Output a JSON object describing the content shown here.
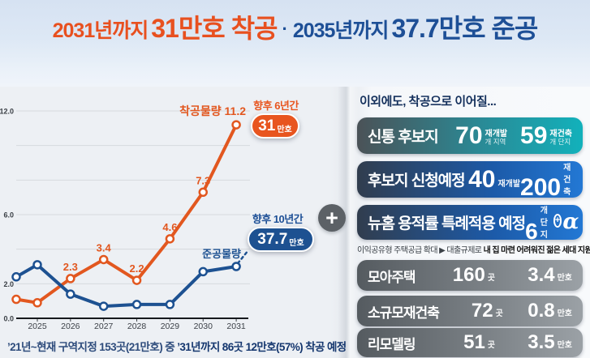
{
  "header": {
    "part1_prefix": "2031년까지",
    "part1_bold": "31만호 착공",
    "separator": "·",
    "part2_prefix": "2035년까지",
    "part2_bold": "37.7만호 준공",
    "accent_orange": "#e8501f",
    "accent_navy": "#1d4f96"
  },
  "chart_data": {
    "type": "line",
    "categories": [
      "",
      "2025",
      "2026",
      "2027",
      "2028",
      "2029",
      "2030",
      "2031"
    ],
    "series": [
      {
        "name": "착공물량",
        "color": "#e2571f",
        "values": [
          1.1,
          0.9,
          2.3,
          3.4,
          2.2,
          4.6,
          7.3,
          11.2
        ],
        "labeled_points": [
          2,
          3,
          4,
          5,
          6
        ]
      },
      {
        "name": "준공물량",
        "color": "#1d5191",
        "values": [
          2.4,
          3.1,
          1.4,
          0.7,
          0.8,
          0.8,
          2.7,
          3.0
        ],
        "dashed_tail": true
      }
    ],
    "ylim": [
      0,
      12
    ],
    "grid": true,
    "grid_step": 2,
    "y_ticks": [
      {
        "value": 12,
        "label": "12.0"
      },
      {
        "value": 6,
        "label": "6.0"
      },
      {
        "value": 2,
        "label": "2.0"
      },
      {
        "value": 0,
        "label": "0.0"
      }
    ],
    "annotations": [
      {
        "label": "향후 6년간",
        "value": "31",
        "unit": "만호",
        "color": "#e8551f"
      },
      {
        "label": "향후 10년간",
        "value": "37.7",
        "unit": "만호",
        "color": "#1d5191"
      }
    ]
  },
  "chart_caption": {
    "normal": "’21년~현재 구역지정 153곳(21만호) 중 ",
    "bold": "’31년까지 86곳 12만호(57%) 착공 예정"
  },
  "plus_divider": "+",
  "panel": {
    "title": "이외에도, 착공으로 이어질...",
    "rows": [
      {
        "label": "신통 후보지",
        "stats": [
          {
            "value": "70",
            "unit_top": "재개발",
            "unit_bottom": "개 지역"
          },
          {
            "value": "59",
            "unit_top": "재건축",
            "unit_bottom": "개 단지"
          }
        ]
      },
      {
        "label": "후보지 신청예정",
        "stats": [
          {
            "value": "40",
            "unit": "재개발"
          },
          {
            "value": "200",
            "unit": "재건축"
          }
        ]
      },
      {
        "label": "뉴홈 용적률 특례적용 예정",
        "stats": [
          {
            "value": "6",
            "unit": "개 단지"
          }
        ],
        "extra_plus": "+",
        "extra_alpha": "α"
      },
      {
        "label": "모아주택",
        "stats": [
          {
            "value": "160",
            "unit": "곳"
          },
          {
            "value": "3.4",
            "unit": "만호"
          }
        ]
      },
      {
        "label": "소규모재건축",
        "stats": [
          {
            "value": "72",
            "unit": "곳"
          },
          {
            "value": "0.8",
            "unit": "만호"
          }
        ]
      },
      {
        "label": "리모델링",
        "stats": [
          {
            "value": "51",
            "unit": "곳"
          },
          {
            "value": "3.5",
            "unit": "만호"
          }
        ]
      }
    ],
    "note": {
      "normal": "이익공유형 주택공급 확대 ▶ 대출규제로 ",
      "bold": "내 집 마련 어려워진 젊은 세대 지원"
    }
  }
}
